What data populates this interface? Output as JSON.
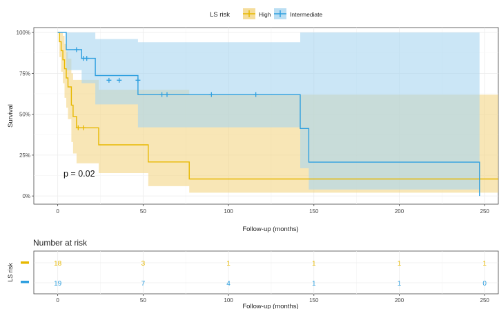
{
  "chart_data": [
    {
      "type": "line",
      "subtype": "kaplan-meier",
      "title": "",
      "legend": {
        "title": "LS risk",
        "position": "top",
        "entries": [
          "High",
          "Intermediate"
        ]
      },
      "xlabel": "Follow-up (months)",
      "ylabel": "Survival",
      "xlim": [
        -14,
        258
      ],
      "ylim": [
        -0.05,
        1.03
      ],
      "x_ticks": [
        0,
        50,
        100,
        150,
        200,
        250
      ],
      "y_ticks": [
        0,
        0.25,
        0.5,
        0.75,
        1.0
      ],
      "y_tick_labels": [
        "0%",
        "25%",
        "50%",
        "75%",
        "100%"
      ],
      "grid": true,
      "annotation": "p = 0.02",
      "series": [
        {
          "name": "High",
          "color": "#E7B800",
          "band_color": "#F2D27A",
          "steps": [
            [
              0,
              1.0
            ],
            [
              1,
              0.944
            ],
            [
              2,
              0.889
            ],
            [
              3,
              0.833
            ],
            [
              4,
              0.778
            ],
            [
              5,
              0.722
            ],
            [
              6,
              0.667
            ],
            [
              8,
              0.556
            ],
            [
              9,
              0.486
            ],
            [
              11,
              0.417
            ],
            [
              24,
              0.313
            ],
            [
              53,
              0.208
            ],
            [
              77,
              0.104
            ],
            [
              258,
              0.104
            ]
          ],
          "lower": [
            [
              0,
              1.0
            ],
            [
              1,
              0.85
            ],
            [
              2,
              0.76
            ],
            [
              3,
              0.69
            ],
            [
              4,
              0.6
            ],
            [
              5,
              0.54
            ],
            [
              6,
              0.47
            ],
            [
              8,
              0.33
            ],
            [
              9,
              0.26
            ],
            [
              11,
              0.2
            ],
            [
              24,
              0.14
            ],
            [
              53,
              0.06
            ],
            [
              77,
              0.02
            ],
            [
              258,
              0.02
            ]
          ],
          "upper": [
            [
              0,
              1.0
            ],
            [
              1,
              1.0
            ],
            [
              2,
              1.0
            ],
            [
              3,
              0.98
            ],
            [
              4,
              0.93
            ],
            [
              5,
              0.88
            ],
            [
              6,
              0.84
            ],
            [
              8,
              0.75
            ],
            [
              9,
              0.71
            ],
            [
              11,
              0.71
            ],
            [
              24,
              0.65
            ],
            [
              53,
              0.65
            ],
            [
              77,
              0.62
            ],
            [
              258,
              0.62
            ]
          ],
          "censored": [
            [
              12,
              0.417
            ],
            [
              15,
              0.417
            ]
          ]
        },
        {
          "name": "Intermediate",
          "color": "#2E9FDF",
          "band_color": "#A9D6F0",
          "steps": [
            [
              0,
              1.0
            ],
            [
              5,
              0.895
            ],
            [
              14,
              0.842
            ],
            [
              22,
              0.737
            ],
            [
              47,
              0.62
            ],
            [
              142,
              0.413
            ],
            [
              147,
              0.207
            ],
            [
              247,
              0.0
            ],
            [
              247,
              0.0
            ]
          ],
          "lower": [
            [
              0,
              1.0
            ],
            [
              5,
              0.77
            ],
            [
              14,
              0.69
            ],
            [
              22,
              0.56
            ],
            [
              47,
              0.42
            ],
            [
              142,
              0.17
            ],
            [
              147,
              0.04
            ],
            [
              247,
              0.0
            ]
          ],
          "upper": [
            [
              0,
              1.0
            ],
            [
              5,
              1.0
            ],
            [
              14,
              1.0
            ],
            [
              22,
              0.96
            ],
            [
              47,
              0.94
            ],
            [
              142,
              1.0
            ],
            [
              147,
              1.0
            ],
            [
              247,
              1.0
            ]
          ],
          "censored": [
            [
              11,
              0.895
            ],
            [
              15,
              0.842
            ],
            [
              17,
              0.842
            ],
            [
              30,
              0.708
            ],
            [
              36,
              0.708
            ],
            [
              47,
              0.708
            ],
            [
              61,
              0.62
            ],
            [
              64,
              0.62
            ],
            [
              90,
              0.62
            ],
            [
              116,
              0.62
            ]
          ]
        }
      ]
    },
    {
      "type": "table",
      "title": "Number at risk",
      "ylabel": "LS risk",
      "xlabel": "Follow-up (months)",
      "x_ticks": [
        0,
        50,
        100,
        150,
        200,
        250
      ],
      "rows": [
        {
          "name": "High",
          "color": "#E7B800",
          "values": [
            18,
            3,
            1,
            1,
            1,
            1
          ]
        },
        {
          "name": "Intermediate",
          "color": "#2E9FDF",
          "values": [
            19,
            7,
            4,
            1,
            1,
            0
          ]
        }
      ]
    }
  ]
}
